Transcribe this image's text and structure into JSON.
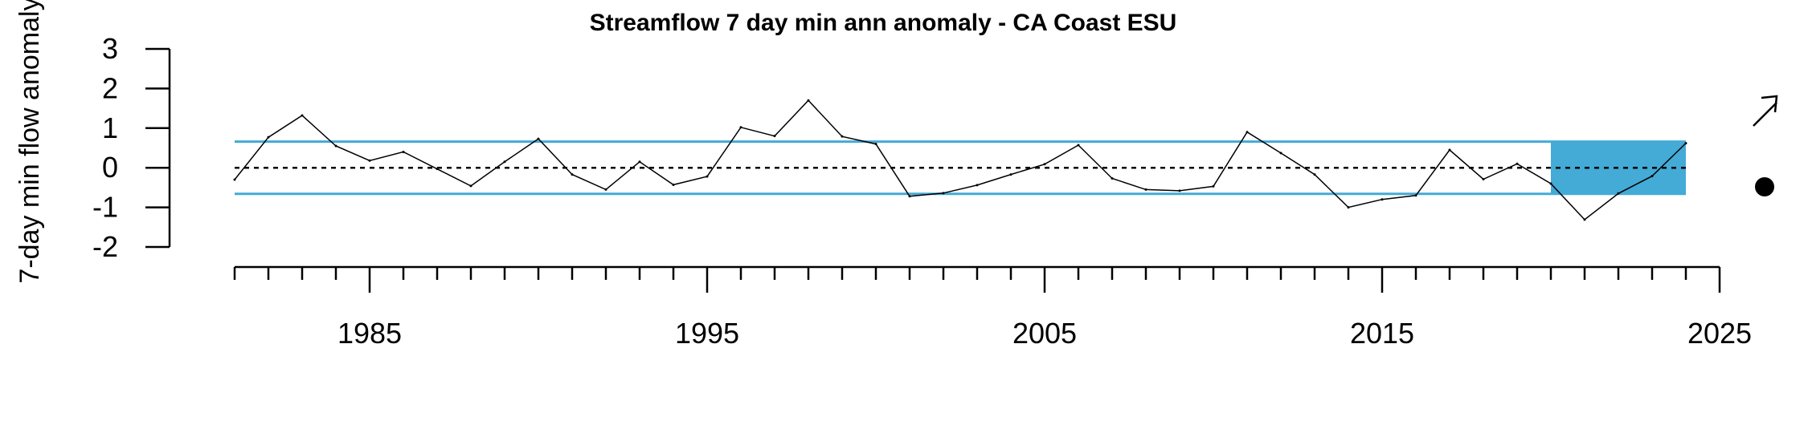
{
  "chart_data": {
    "type": "line",
    "title": "Streamflow 7 day min ann anomaly - CA Coast ESU",
    "xlabel": "",
    "ylabel": "7-day min flow anomaly",
    "xlim": [
      1981,
      2025
    ],
    "ylim": [
      -2,
      3
    ],
    "x_ticks": [
      1985,
      1995,
      2005,
      2015,
      2025
    ],
    "y_ticks": [
      -2,
      -1,
      0,
      1,
      2,
      3
    ],
    "grid": false,
    "x": [
      1981,
      1982,
      1983,
      1984,
      1985,
      1986,
      1987,
      1988,
      1989,
      1990,
      1991,
      1992,
      1993,
      1994,
      1995,
      1996,
      1997,
      1998,
      1999,
      2000,
      2001,
      2002,
      2003,
      2004,
      2005,
      2006,
      2007,
      2008,
      2009,
      2010,
      2011,
      2012,
      2013,
      2014,
      2015,
      2016,
      2017,
      2018,
      2019,
      2020,
      2021,
      2022,
      2023,
      2024
    ],
    "series": [
      {
        "values": [
          -0.3,
          0.77,
          1.32,
          0.55,
          0.18,
          0.4,
          -0.03,
          -0.46,
          0.15,
          0.73,
          -0.17,
          -0.55,
          0.15,
          -0.43,
          -0.22,
          1.02,
          0.8,
          1.7,
          0.79,
          0.6,
          -0.72,
          -0.64,
          -0.44,
          -0.17,
          0.09,
          0.57,
          -0.27,
          -0.55,
          -0.58,
          -0.47,
          0.9,
          0.37,
          -0.17,
          -1.0,
          -0.8,
          -0.7,
          0.45,
          -0.29,
          0.1,
          -0.4,
          -1.31,
          -0.65,
          -0.21,
          0.62
        ]
      }
    ],
    "reference_lines": {
      "mean": 0,
      "upper": 0.66,
      "lower": -0.66,
      "band_color": "#44aad6"
    },
    "highlight_period": {
      "start": 2020,
      "end": 2024,
      "color": "#44aad6"
    },
    "indicators": {
      "trend": "arrow-up-right",
      "mean_status": "filled-circle"
    }
  }
}
